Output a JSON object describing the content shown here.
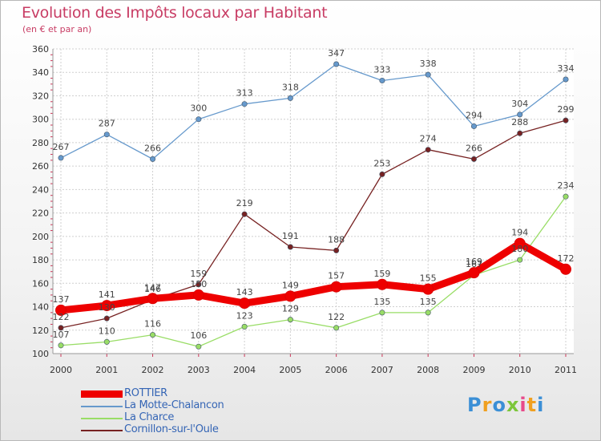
{
  "title": "Evolution des Impôts locaux par Habitant",
  "subtitle": "(en € et par an)",
  "logo": {
    "letters": [
      {
        "char": "P",
        "color": "#3b8fd6"
      },
      {
        "char": "r",
        "color": "#f0a020"
      },
      {
        "char": "o",
        "color": "#3b8fd6"
      },
      {
        "char": "x",
        "color": "#7cc63a"
      },
      {
        "char": "i",
        "color": "#e84a8a"
      },
      {
        "char": "t",
        "color": "#f0a020"
      },
      {
        "char": "i",
        "color": "#3b8fd6"
      }
    ]
  },
  "chart_data": {
    "type": "line",
    "x": [
      "2000",
      "2001",
      "2002",
      "2003",
      "2004",
      "2005",
      "2006",
      "2007",
      "2008",
      "2009",
      "2010",
      "2011"
    ],
    "ylim": [
      100,
      360
    ],
    "yticks": [
      "100",
      "120",
      "140",
      "160",
      "180",
      "200",
      "220",
      "240",
      "260",
      "280",
      "300",
      "320",
      "340",
      "360"
    ],
    "grid": true,
    "legend_position": "bottom-left",
    "series": [
      {
        "name": "ROTTIER",
        "color": "#ee0000",
        "values": [
          137,
          141,
          147,
          150,
          143,
          149,
          157,
          159,
          155,
          169,
          194,
          172
        ],
        "labels": [
          "137",
          "141",
          "147",
          "150",
          "143",
          "149",
          "157",
          "159",
          "155",
          "169",
          "194",
          "172"
        ]
      },
      {
        "name": "La Motte-Chalancon",
        "color": "#6699cc",
        "values": [
          267,
          287,
          266,
          300,
          313,
          318,
          347,
          333,
          338,
          294,
          304,
          334
        ],
        "labels": [
          "267",
          "287",
          "266",
          "300",
          "313",
          "318",
          "347",
          "333",
          "338",
          "294",
          "304",
          "334"
        ]
      },
      {
        "name": "La Charce",
        "color": "#99dd66",
        "values": [
          107,
          110,
          116,
          106,
          123,
          129,
          122,
          135,
          135,
          167,
          180,
          234
        ],
        "labels": [
          "107",
          "110",
          "116",
          "106",
          "123",
          "129",
          "122",
          "135",
          "135",
          "167",
          "180",
          "234"
        ]
      },
      {
        "name": "Cornillon-sur-l'Oule",
        "color": "#772222",
        "values": [
          122,
          130,
          146,
          159,
          219,
          191,
          188,
          253,
          274,
          266,
          288,
          299
        ],
        "labels": [
          "122",
          "130",
          "146",
          "159",
          "219",
          "191",
          "188",
          "253",
          "274",
          "266",
          "288",
          "299"
        ]
      }
    ]
  }
}
